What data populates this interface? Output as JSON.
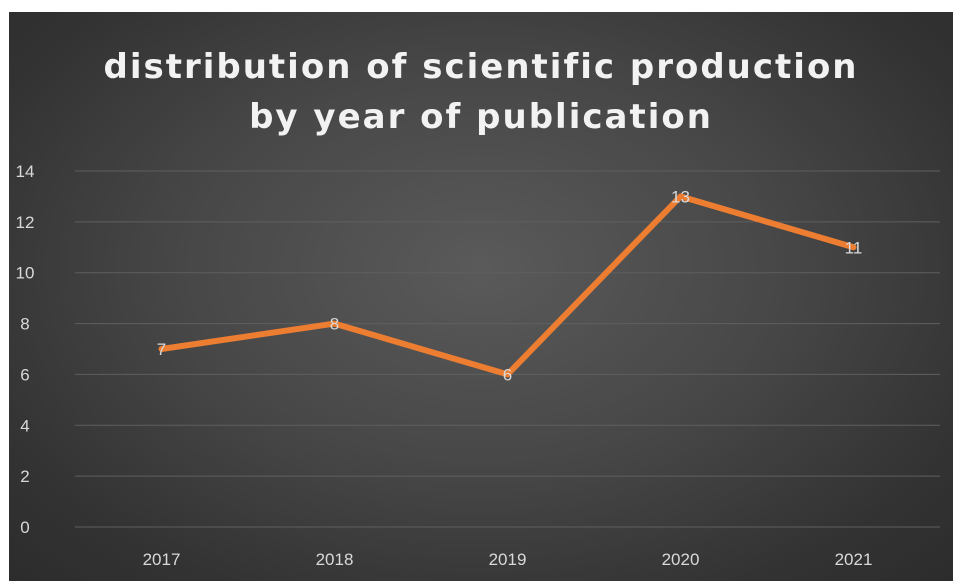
{
  "chart_data": {
    "type": "line",
    "title_lines": [
      "distribution of scientific production",
      "by year of publication"
    ],
    "categories": [
      "2017",
      "2018",
      "2019",
      "2020",
      "2021"
    ],
    "series": [
      {
        "values": [
          7,
          8,
          6,
          13,
          11
        ]
      }
    ],
    "ylim": [
      0,
      14
    ],
    "y_ticks": [
      0,
      2,
      4,
      6,
      8,
      10,
      12,
      14
    ],
    "grid": true,
    "data_labels": true,
    "xlabel": "",
    "ylabel": ""
  },
  "colors": {
    "line": "#ED7D31",
    "grid": "#5f5f5f",
    "text": "#d9d9d9",
    "title": "#f2f2f2"
  }
}
